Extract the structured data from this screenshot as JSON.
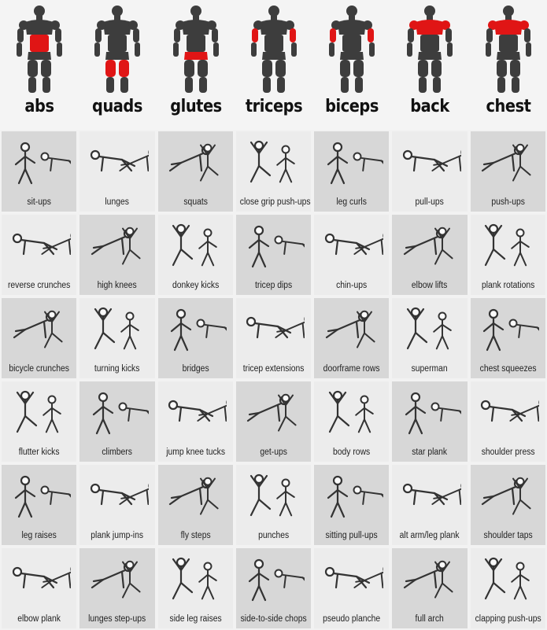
{
  "muscles": [
    {
      "label": "abs",
      "highlight": "abs"
    },
    {
      "label": "quads",
      "highlight": "quads"
    },
    {
      "label": "glutes",
      "highlight": "glutes"
    },
    {
      "label": "triceps",
      "highlight": "triceps"
    },
    {
      "label": "biceps",
      "highlight": "biceps"
    },
    {
      "label": "back",
      "highlight": "back"
    },
    {
      "label": "chest",
      "highlight": "chest"
    }
  ],
  "colors": {
    "highlight": "#e01515",
    "body": "#3d3d3d",
    "shade_dark": "#d7d7d7",
    "shade_light": "#ececec"
  },
  "rows": [
    [
      "sit-ups",
      "lunges",
      "squats",
      "close grip push-ups",
      "leg curls",
      "pull-ups",
      "push-ups"
    ],
    [
      "reverse crunches",
      "high knees",
      "donkey kicks",
      "tricep dips",
      "chin-ups",
      "elbow lifts",
      "plank rotations"
    ],
    [
      "bicycle crunches",
      "turning kicks",
      "bridges",
      "tricep extensions",
      "doorframe rows",
      "superman",
      "chest squeezes"
    ],
    [
      "flutter kicks",
      "climbers",
      "jump knee tucks",
      "get-ups",
      "body rows",
      "star plank",
      "shoulder press"
    ],
    [
      "leg raises",
      "plank jump-ins",
      "fly steps",
      "punches",
      "sitting pull-ups",
      "alt arm/leg plank",
      "shoulder taps"
    ],
    [
      "elbow plank",
      "lunges step-ups",
      "side leg raises",
      "side-to-side chops",
      "pseudo planche",
      "full arch",
      "clapping push-ups"
    ]
  ]
}
